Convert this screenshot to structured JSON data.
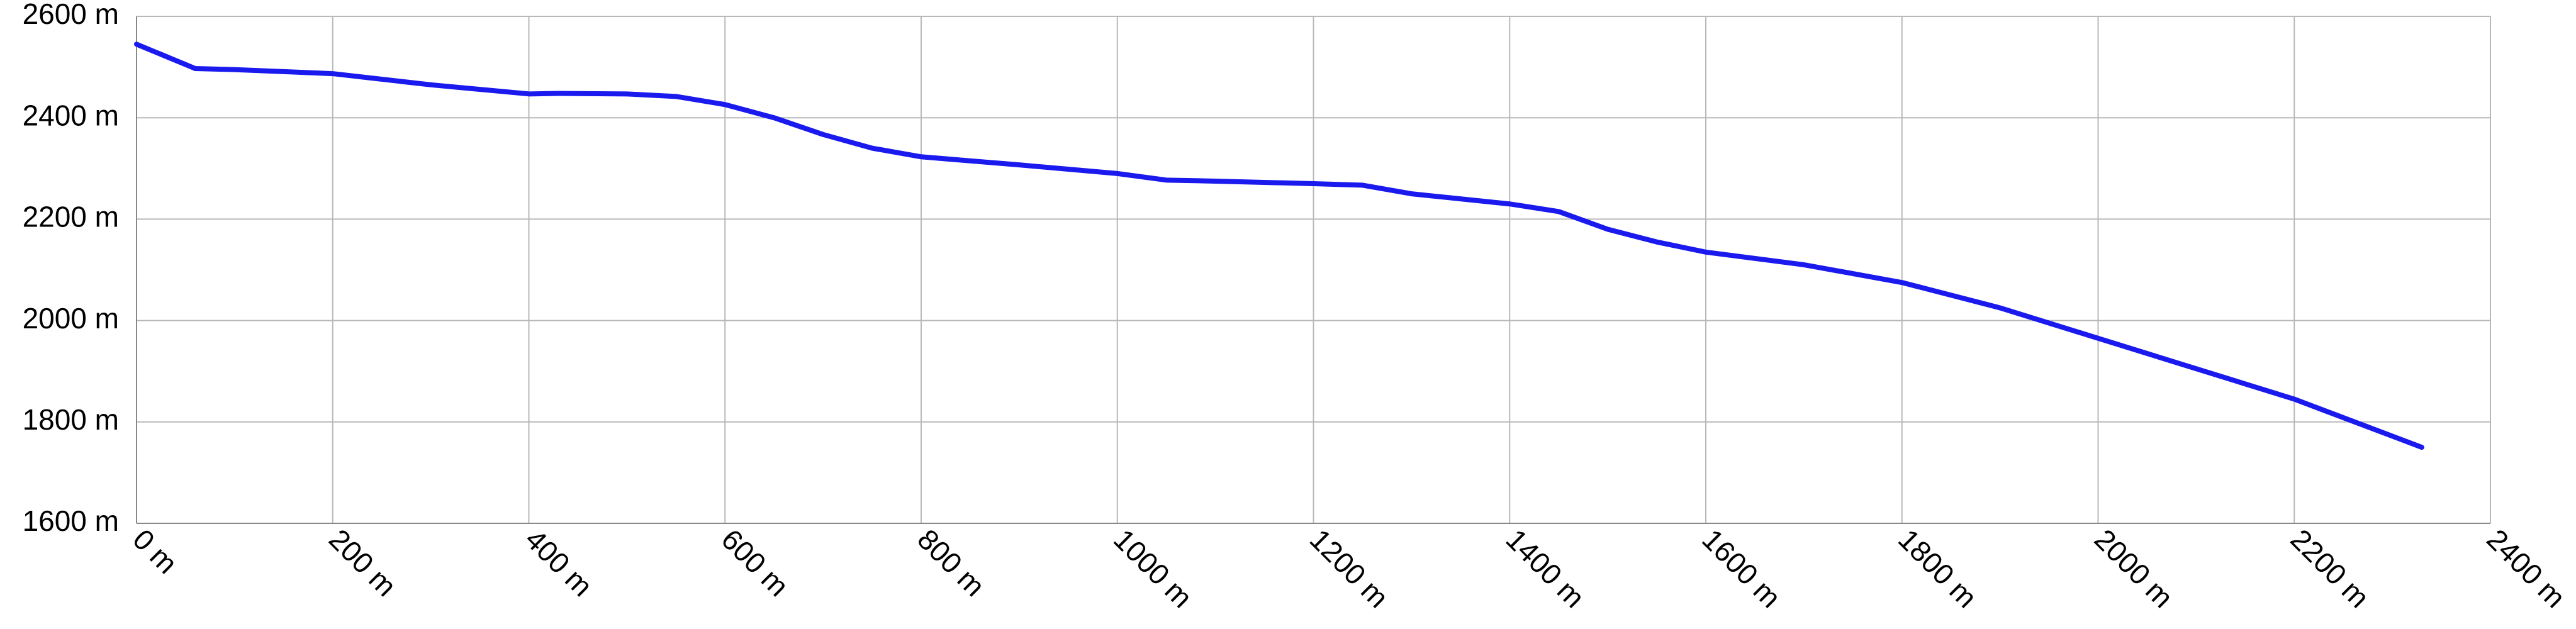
{
  "chart_data": {
    "type": "line",
    "x": [
      0,
      60,
      100,
      200,
      300,
      400,
      430,
      500,
      550,
      600,
      650,
      700,
      750,
      800,
      900,
      1000,
      1050,
      1100,
      1200,
      1250,
      1300,
      1400,
      1450,
      1500,
      1550,
      1600,
      1700,
      1800,
      1900,
      2000,
      2100,
      2200,
      2330
    ],
    "series": [
      {
        "color": "#1a1aee",
        "values": [
          2545,
          2497,
          2495,
          2487,
          2465,
          2447,
          2448,
          2447,
          2442,
          2426,
          2400,
          2367,
          2340,
          2323,
          2307,
          2290,
          2277,
          2275,
          2270,
          2267,
          2250,
          2230,
          2215,
          2180,
          2155,
          2135,
          2110,
          2075,
          2025,
          1965,
          1905,
          1845,
          1750
        ]
      }
    ],
    "xlim": [
      0,
      2400
    ],
    "xticks": [
      {
        "value": 0,
        "label": "0 m"
      },
      {
        "value": 200,
        "label": "200 m"
      },
      {
        "value": 400,
        "label": "400 m"
      },
      {
        "value": 600,
        "label": "600 m"
      },
      {
        "value": 800,
        "label": "800 m"
      },
      {
        "value": 1000,
        "label": "1000 m"
      },
      {
        "value": 1200,
        "label": "1200 m"
      },
      {
        "value": 1400,
        "label": "1400 m"
      },
      {
        "value": 1600,
        "label": "1600 m"
      },
      {
        "value": 1800,
        "label": "1800 m"
      },
      {
        "value": 2000,
        "label": "2000 m"
      },
      {
        "value": 2200,
        "label": "2200 m"
      },
      {
        "value": 2400,
        "label": "2400 m"
      }
    ],
    "ylim": [
      1600,
      2600
    ],
    "yticks": [
      {
        "value": 1600,
        "label": "1600 m"
      },
      {
        "value": 1800,
        "label": "1800 m"
      },
      {
        "value": 2000,
        "label": "2000 m"
      },
      {
        "value": 2200,
        "label": "2200 m"
      },
      {
        "value": 2400,
        "label": "2400 m"
      },
      {
        "value": 2600,
        "label": "2600 m"
      }
    ],
    "grid": true
  }
}
